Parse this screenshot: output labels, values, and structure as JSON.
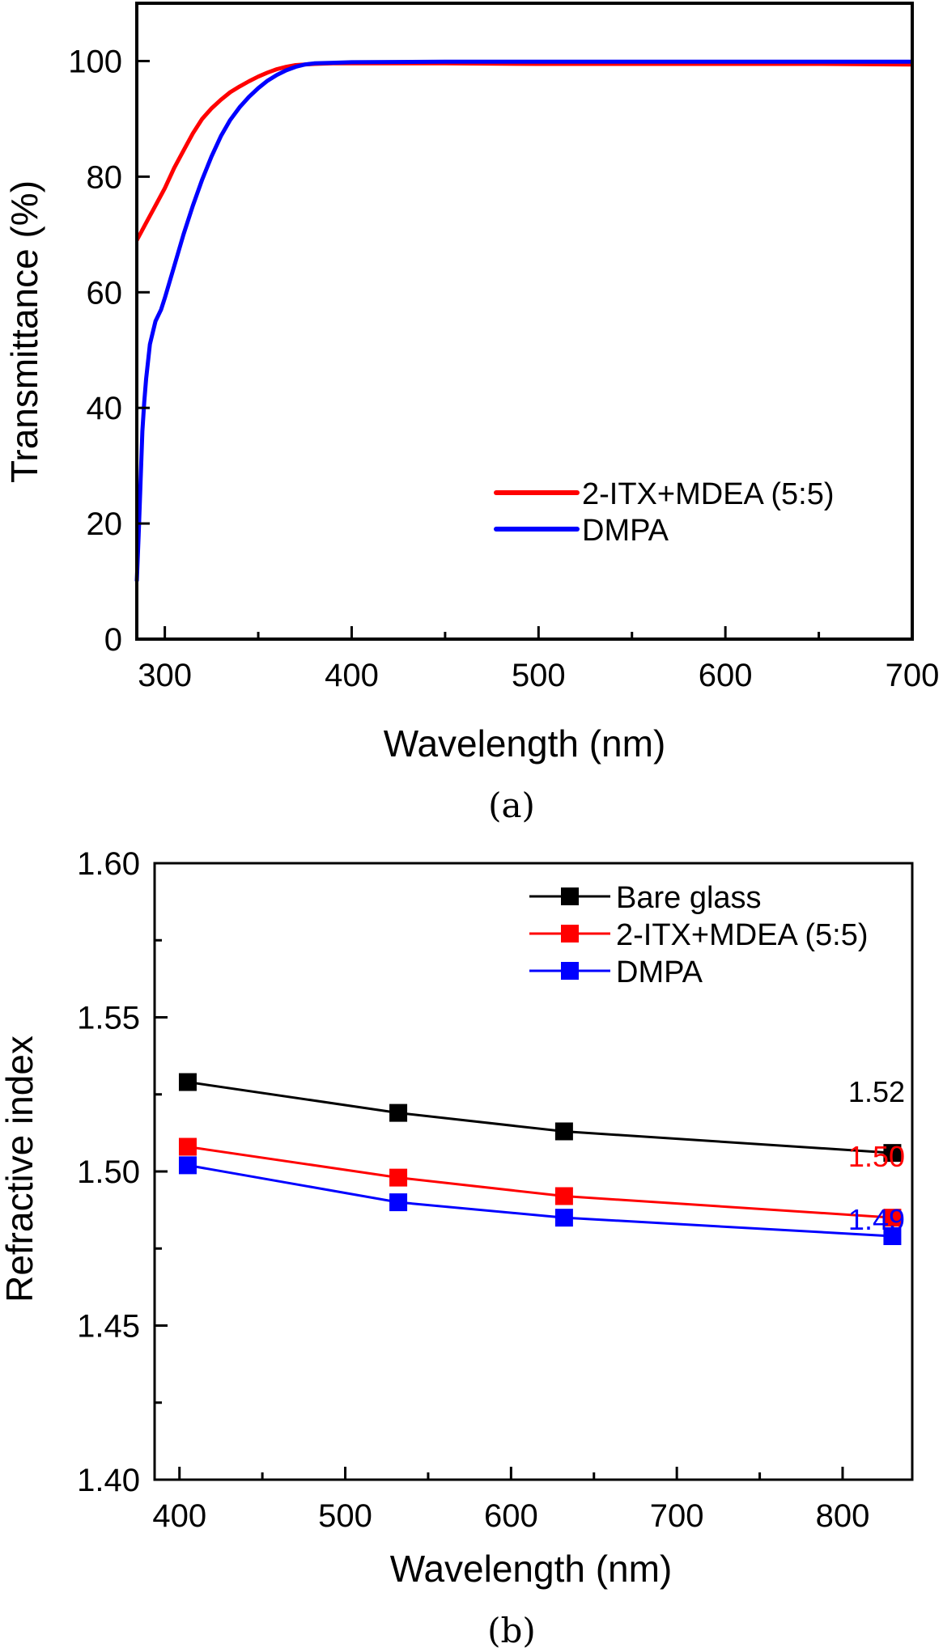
{
  "chart_data": [
    {
      "panel": "a",
      "type": "line",
      "caption": "(a)",
      "xlabel": "Wavelength (nm)",
      "ylabel": "Transmittance (%)",
      "xlim": [
        285,
        700
      ],
      "ylim": [
        0,
        110
      ],
      "xticks": [
        300,
        400,
        500,
        600,
        700
      ],
      "xticks_minor": [
        350,
        450,
        550,
        650
      ],
      "yticks": [
        0,
        20,
        40,
        60,
        80,
        100
      ],
      "grid": false,
      "legend_position": "lower-right",
      "series": [
        {
          "name": "2-ITX+MDEA (5:5)",
          "color": "#ff0000",
          "x": [
            285,
            290,
            295,
            300,
            305,
            310,
            315,
            320,
            325,
            330,
            335,
            340,
            345,
            350,
            355,
            360,
            365,
            370,
            380,
            390,
            400,
            450,
            500,
            550,
            600,
            650,
            700
          ],
          "y": [
            69,
            72,
            75,
            78,
            81.5,
            84.5,
            87.5,
            90,
            91.8,
            93.3,
            94.6,
            95.6,
            96.5,
            97.3,
            98,
            98.6,
            99,
            99.3,
            99.5,
            99.6,
            99.6,
            99.6,
            99.5,
            99.5,
            99.5,
            99.5,
            99.4
          ]
        },
        {
          "name": "DMPA",
          "color": "#0000ff",
          "x": [
            285,
            286,
            287,
            288,
            289,
            290,
            292,
            295,
            298,
            300,
            305,
            310,
            315,
            320,
            325,
            330,
            335,
            340,
            345,
            350,
            355,
            360,
            365,
            370,
            375,
            380,
            390,
            400,
            450,
            500,
            550,
            600,
            650,
            700
          ],
          "y": [
            10,
            18,
            27,
            36,
            41,
            45,
            51,
            55,
            57,
            59,
            64.5,
            70,
            75,
            79.5,
            83.5,
            87,
            89.8,
            92,
            93.8,
            95.3,
            96.6,
            97.6,
            98.4,
            99,
            99.4,
            99.6,
            99.7,
            99.8,
            99.9,
            99.9,
            99.9,
            99.9,
            99.9,
            99.9
          ]
        }
      ]
    },
    {
      "panel": "b",
      "type": "line",
      "caption": "(b)",
      "xlabel": "Wavelength (nm)",
      "ylabel": "Refractive index",
      "xlim": [
        385,
        842
      ],
      "ylim": [
        1.4,
        1.6
      ],
      "xticks": [
        400,
        500,
        600,
        700,
        800
      ],
      "xticks_minor": [
        450,
        550,
        650,
        750
      ],
      "yticks": [
        "1.40",
        "1.45",
        "1.50",
        "1.55",
        "1.60"
      ],
      "yticks_values": [
        1.4,
        1.45,
        1.5,
        1.55,
        1.6
      ],
      "yticks_minor": [
        1.425,
        1.475,
        1.525,
        1.575
      ],
      "grid": false,
      "legend_position": "top-right",
      "marker": "square",
      "x": [
        405,
        532,
        632,
        830
      ],
      "series": [
        {
          "name": "Bare glass",
          "color": "#000000",
          "values": [
            1.529,
            1.519,
            1.513,
            1.506
          ]
        },
        {
          "name": "2-ITX+MDEA (5:5)",
          "color": "#ff0000",
          "values": [
            1.508,
            1.498,
            1.492,
            1.485
          ]
        },
        {
          "name": "DMPA",
          "color": "#0000ff",
          "values": [
            1.502,
            1.49,
            1.485,
            1.479
          ]
        }
      ],
      "annotations": [
        {
          "text": "1.52",
          "color": "#000000",
          "series": "Bare glass"
        },
        {
          "text": "1.50",
          "color": "#ff0000",
          "series": "2-ITX+MDEA (5:5)"
        },
        {
          "text": "1.49",
          "color": "#0000ff",
          "series": "DMPA"
        }
      ]
    }
  ]
}
